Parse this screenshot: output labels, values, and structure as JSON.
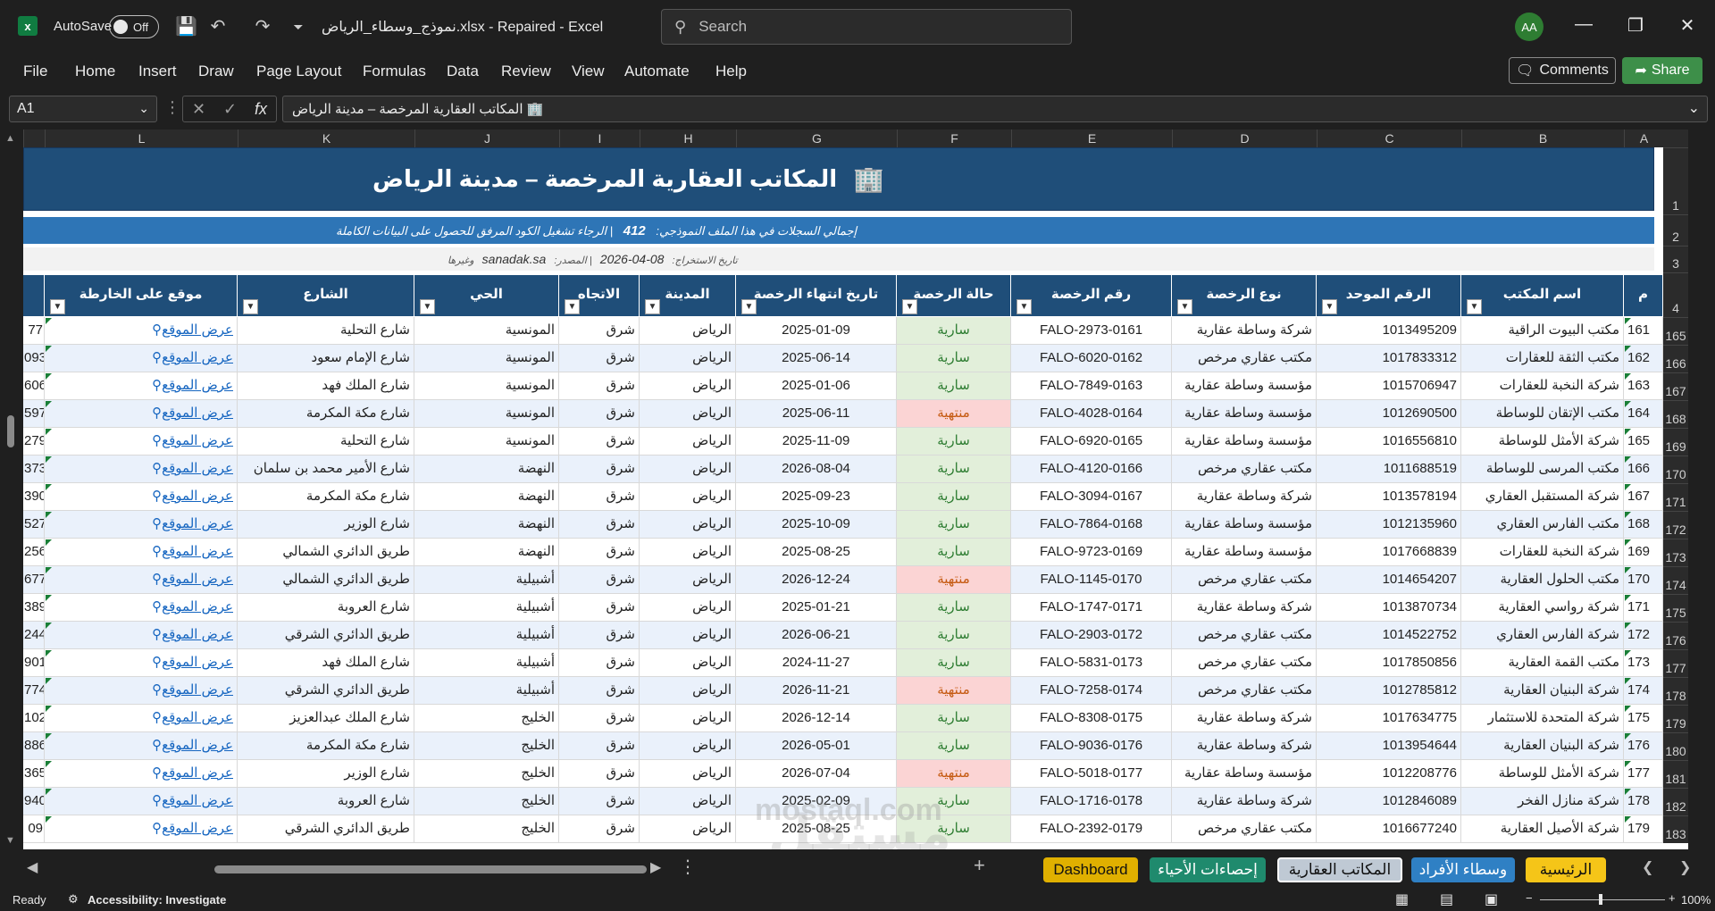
{
  "titlebar": {
    "autosave_label": "AutoSave",
    "autosave_state": "Off",
    "doc_title": "نموذج_وسطاء_الرياض.xlsx  -  Repaired  -  Excel",
    "search_placeholder": "Search",
    "avatar": "AA"
  },
  "menu": {
    "items": [
      "File",
      "Home",
      "Insert",
      "Draw",
      "Page Layout",
      "Formulas",
      "Data",
      "Review",
      "View",
      "Automate",
      "Help"
    ],
    "comments": "Comments",
    "share": "Share"
  },
  "formula_bar": {
    "name_box": "A1",
    "formula": "🏢 المكاتب العقارية المرخصة – مدينة الرياض"
  },
  "columns": [
    "A",
    "B",
    "C",
    "D",
    "E",
    "F",
    "G",
    "H",
    "I",
    "J",
    "K",
    "L"
  ],
  "sheet": {
    "title": "المكاتب العقارية المرخصة – مدينة الرياض",
    "title_icon": "🏢",
    "total_label": "إجمالي السجلات في هذا الملف النموذجي:",
    "total_value": "412",
    "total_note": "الرجاء تشغيل الكود المرفق للحصول على البيانات الكاملة",
    "extract_label": "تاريخ الاستخراج:",
    "extract_date": "08-04-2026",
    "source_label": "المصدر:",
    "source_value": "sanadak.sa",
    "source_suffix": "وغيرها",
    "headers": [
      "م",
      "اسم المكتب",
      "الرقم الموحد",
      "نوع الرخصة",
      "رقم الرخصة",
      "حالة الرخصة",
      "تاريخ انتهاء الرخصة",
      "المدينة",
      "الاتجاه",
      "الحي",
      "الشارع",
      "موقع على الخارطة"
    ],
    "top_row_numbers": [
      "1",
      "2",
      "3",
      "4"
    ],
    "link_text": "عرض الموقع",
    "rows": [
      {
        "row": "165",
        "n": "161",
        "name": "مكتب البيوت الراقية",
        "uid": "1013495209",
        "type": "شركة وساطة عقارية",
        "lic": "FALO-2973-0161",
        "status": "سارية",
        "active": true,
        "exp": "2025-01-09",
        "city": "الرياض",
        "dir": "شرق",
        "dist": "المونسية",
        "street": "شارع التحلية",
        "cut": "77"
      },
      {
        "row": "166",
        "n": "162",
        "name": "مكتب الثقة للعقارات",
        "uid": "1017833312",
        "type": "مكتب عقاري مرخص",
        "lic": "FALO-6020-0162",
        "status": "سارية",
        "active": true,
        "exp": "2025-06-14",
        "city": "الرياض",
        "dir": "شرق",
        "dist": "المونسية",
        "street": "شارع الإمام سعود",
        "cut": "093"
      },
      {
        "row": "167",
        "n": "163",
        "name": "شركة النخبة للعقارات",
        "uid": "1015706947",
        "type": "مؤسسة وساطة عقارية",
        "lic": "FALO-7849-0163",
        "status": "سارية",
        "active": true,
        "exp": "2025-01-06",
        "city": "الرياض",
        "dir": "شرق",
        "dist": "المونسية",
        "street": "شارع الملك فهد",
        "cut": "606"
      },
      {
        "row": "168",
        "n": "164",
        "name": "مكتب الإتقان للوساطة",
        "uid": "1012690500",
        "type": "مؤسسة وساطة عقارية",
        "lic": "FALO-4028-0164",
        "status": "منتهية",
        "active": false,
        "exp": "2025-06-11",
        "city": "الرياض",
        "dir": "شرق",
        "dist": "المونسية",
        "street": "شارع مكة المكرمة",
        "cut": "597"
      },
      {
        "row": "169",
        "n": "165",
        "name": "شركة الأمثل للوساطة",
        "uid": "1016556810",
        "type": "مؤسسة وساطة عقارية",
        "lic": "FALO-6920-0165",
        "status": "سارية",
        "active": true,
        "exp": "2025-11-09",
        "city": "الرياض",
        "dir": "شرق",
        "dist": "المونسية",
        "street": "شارع التحلية",
        "cut": "279"
      },
      {
        "row": "170",
        "n": "166",
        "name": "مكتب المرسى للوساطة",
        "uid": "1011688519",
        "type": "مكتب عقاري مرخص",
        "lic": "FALO-4120-0166",
        "status": "سارية",
        "active": true,
        "exp": "2026-08-04",
        "city": "الرياض",
        "dir": "شرق",
        "dist": "النهضة",
        "street": "شارع الأمير محمد بن سلمان",
        "cut": "373"
      },
      {
        "row": "171",
        "n": "167",
        "name": "شركة المستقبل العقاري",
        "uid": "1013578194",
        "type": "شركة وساطة عقارية",
        "lic": "FALO-3094-0167",
        "status": "سارية",
        "active": true,
        "exp": "2025-09-23",
        "city": "الرياض",
        "dir": "شرق",
        "dist": "النهضة",
        "street": "شارع مكة المكرمة",
        "cut": "390"
      },
      {
        "row": "172",
        "n": "168",
        "name": "مكتب الفارس العقاري",
        "uid": "1012135960",
        "type": "مؤسسة وساطة عقارية",
        "lic": "FALO-7864-0168",
        "status": "سارية",
        "active": true,
        "exp": "2025-10-09",
        "city": "الرياض",
        "dir": "شرق",
        "dist": "النهضة",
        "street": "شارع الوزير",
        "cut": "527"
      },
      {
        "row": "173",
        "n": "169",
        "name": "شركة النخبة للعقارات",
        "uid": "1017668839",
        "type": "مؤسسة وساطة عقارية",
        "lic": "FALO-9723-0169",
        "status": "سارية",
        "active": true,
        "exp": "2025-08-25",
        "city": "الرياض",
        "dir": "شرق",
        "dist": "النهضة",
        "street": "طريق الدائري الشمالي",
        "cut": "256"
      },
      {
        "row": "174",
        "n": "170",
        "name": "مكتب الحلول العقارية",
        "uid": "1014654207",
        "type": "مكتب عقاري مرخص",
        "lic": "FALO-1145-0170",
        "status": "منتهية",
        "active": false,
        "exp": "2026-12-24",
        "city": "الرياض",
        "dir": "شرق",
        "dist": "أشبيلية",
        "street": "طريق الدائري الشمالي",
        "cut": "677"
      },
      {
        "row": "175",
        "n": "171",
        "name": "شركة رواسي العقارية",
        "uid": "1013870734",
        "type": "شركة وساطة عقارية",
        "lic": "FALO-1747-0171",
        "status": "سارية",
        "active": true,
        "exp": "2025-01-21",
        "city": "الرياض",
        "dir": "شرق",
        "dist": "أشبيلية",
        "street": "شارع العروبة",
        "cut": "389"
      },
      {
        "row": "176",
        "n": "172",
        "name": "شركة الفارس العقاري",
        "uid": "1014522752",
        "type": "مكتب عقاري مرخص",
        "lic": "FALO-2903-0172",
        "status": "سارية",
        "active": true,
        "exp": "2026-06-21",
        "city": "الرياض",
        "dir": "شرق",
        "dist": "أشبيلية",
        "street": "طريق الدائري الشرقي",
        "cut": "244"
      },
      {
        "row": "177",
        "n": "173",
        "name": "مكتب القمة العقارية",
        "uid": "1017850856",
        "type": "مكتب عقاري مرخص",
        "lic": "FALO-5831-0173",
        "status": "سارية",
        "active": true,
        "exp": "2024-11-27",
        "city": "الرياض",
        "dir": "شرق",
        "dist": "أشبيلية",
        "street": "شارع الملك فهد",
        "cut": "901"
      },
      {
        "row": "178",
        "n": "174",
        "name": "شركة البنيان العقارية",
        "uid": "1012785812",
        "type": "مكتب عقاري مرخص",
        "lic": "FALO-7258-0174",
        "status": "منتهية",
        "active": false,
        "exp": "2026-11-21",
        "city": "الرياض",
        "dir": "شرق",
        "dist": "أشبيلية",
        "street": "طريق الدائري الشرقي",
        "cut": "774"
      },
      {
        "row": "179",
        "n": "175",
        "name": "شركة المتحدة للاستثمار",
        "uid": "1017634775",
        "type": "شركة وساطة عقارية",
        "lic": "FALO-8308-0175",
        "status": "سارية",
        "active": true,
        "exp": "2026-12-14",
        "city": "الرياض",
        "dir": "شرق",
        "dist": "الخليج",
        "street": "شارع الملك عبدالعزيز",
        "cut": "102"
      },
      {
        "row": "180",
        "n": "176",
        "name": "شركة البنيان العقارية",
        "uid": "1013954644",
        "type": "شركة وساطة عقارية",
        "lic": "FALO-9036-0176",
        "status": "سارية",
        "active": true,
        "exp": "2026-05-01",
        "city": "الرياض",
        "dir": "شرق",
        "dist": "الخليج",
        "street": "شارع مكة المكرمة",
        "cut": "886"
      },
      {
        "row": "181",
        "n": "177",
        "name": "شركة الأمثل للوساطة",
        "uid": "1012208776",
        "type": "مؤسسة وساطة عقارية",
        "lic": "FALO-5018-0177",
        "status": "منتهية",
        "active": false,
        "exp": "2026-07-04",
        "city": "الرياض",
        "dir": "شرق",
        "dist": "الخليج",
        "street": "شارع الوزير",
        "cut": "365"
      },
      {
        "row": "182",
        "n": "178",
        "name": "شركة منازل الفخر",
        "uid": "1012846089",
        "type": "شركة وساطة عقارية",
        "lic": "FALO-1716-0178",
        "status": "سارية",
        "active": true,
        "exp": "2025-02-09",
        "city": "الرياض",
        "dir": "شرق",
        "dist": "الخليج",
        "street": "شارع العروبة",
        "cut": "940"
      },
      {
        "row": "183",
        "n": "179",
        "name": "شركة الأصيل العقارية",
        "uid": "1016677240",
        "type": "مكتب عقاري مرخص",
        "lic": "FALO-2392-0179",
        "status": "سارية",
        "active": true,
        "exp": "2025-08-25",
        "city": "الرياض",
        "dir": "شرق",
        "dist": "الخليج",
        "street": "طريق الدائري الشرقي",
        "cut": "09"
      }
    ]
  },
  "tabs": [
    {
      "label": "الرئيسية",
      "bg": "#f5c518",
      "fg": "#111111"
    },
    {
      "label": "وسطاء الأفراد",
      "bg": "#2f80c4",
      "fg": "#ffffff"
    },
    {
      "label": "المكاتب العقارية",
      "bg": "#bfc9d4",
      "fg": "#111111"
    },
    {
      "label": "إحصاءات الأحياء",
      "bg": "#1f8a6d",
      "fg": "#ffffff"
    },
    {
      "label": "Dashboard",
      "bg": "#e0b000",
      "fg": "#111111"
    }
  ],
  "watermark": "mostaql.com",
  "watermark_ar": "مستقل",
  "status": {
    "ready": "Ready",
    "accessibility": "Accessibility: Investigate",
    "zoom": "100%"
  }
}
